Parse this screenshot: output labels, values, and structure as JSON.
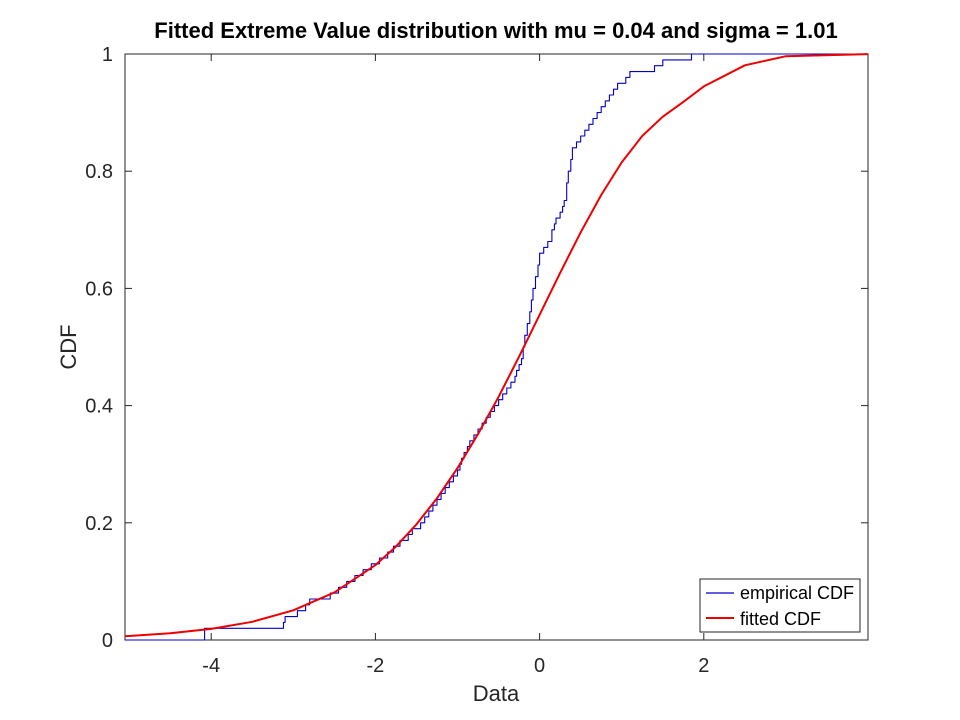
{
  "chart_data": {
    "type": "line",
    "title": "Fitted Extreme Value distribution with mu = 0.04 and sigma = 1.01",
    "xlabel": "Data",
    "ylabel": "CDF",
    "xlim": [
      -5.05,
      4.0
    ],
    "ylim": [
      0,
      1
    ],
    "x_ticks": [
      -4,
      -2,
      0,
      2
    ],
    "y_ticks": [
      0,
      0.2,
      0.4,
      0.6,
      0.8,
      1
    ],
    "x_tick_labels": [
      "-4",
      "-2",
      "0",
      "2"
    ],
    "y_tick_labels": [
      "0",
      "0.2",
      "0.4",
      "0.6",
      "0.8",
      "1"
    ],
    "grid": false,
    "legend_position": "bottom-right",
    "fit_params": {
      "mu": 0.04,
      "sigma": 1.01
    },
    "series": [
      {
        "name": "empirical CDF",
        "color": "#0000cc",
        "style": "stairs",
        "x": [
          -5.05,
          -4.08,
          -3.12,
          -3.1,
          -2.95,
          -2.85,
          -2.8,
          -2.55,
          -2.45,
          -2.35,
          -2.25,
          -2.15,
          -2.05,
          -1.95,
          -1.85,
          -1.78,
          -1.7,
          -1.6,
          -1.55,
          -1.45,
          -1.4,
          -1.35,
          -1.3,
          -1.25,
          -1.2,
          -1.15,
          -1.1,
          -1.05,
          -1.0,
          -0.97,
          -0.95,
          -0.92,
          -0.88,
          -0.85,
          -0.8,
          -0.75,
          -0.7,
          -0.65,
          -0.6,
          -0.55,
          -0.5,
          -0.45,
          -0.4,
          -0.35,
          -0.3,
          -0.28,
          -0.25,
          -0.22,
          -0.2,
          -0.18,
          -0.15,
          -0.12,
          -0.1,
          -0.08,
          -0.05,
          -0.02,
          0.0,
          0.05,
          0.1,
          0.15,
          0.18,
          0.2,
          0.25,
          0.28,
          0.3,
          0.33,
          0.35,
          0.38,
          0.4,
          0.45,
          0.5,
          0.55,
          0.6,
          0.65,
          0.7,
          0.75,
          0.8,
          0.85,
          0.9,
          0.95,
          1.05,
          1.1,
          1.2,
          1.4,
          1.5,
          1.6,
          1.85,
          2.2,
          4.0
        ],
        "y": [
          0.0,
          0.02,
          0.03,
          0.04,
          0.05,
          0.06,
          0.07,
          0.08,
          0.09,
          0.1,
          0.11,
          0.12,
          0.13,
          0.14,
          0.15,
          0.16,
          0.17,
          0.18,
          0.19,
          0.2,
          0.21,
          0.22,
          0.23,
          0.24,
          0.25,
          0.26,
          0.27,
          0.28,
          0.29,
          0.3,
          0.31,
          0.32,
          0.33,
          0.34,
          0.35,
          0.36,
          0.37,
          0.38,
          0.39,
          0.4,
          0.41,
          0.42,
          0.43,
          0.44,
          0.45,
          0.46,
          0.47,
          0.48,
          0.5,
          0.52,
          0.54,
          0.56,
          0.58,
          0.6,
          0.62,
          0.64,
          0.66,
          0.67,
          0.68,
          0.7,
          0.71,
          0.72,
          0.73,
          0.74,
          0.75,
          0.78,
          0.8,
          0.82,
          0.84,
          0.85,
          0.86,
          0.87,
          0.88,
          0.89,
          0.9,
          0.91,
          0.92,
          0.93,
          0.94,
          0.95,
          0.96,
          0.97,
          0.97,
          0.98,
          0.99,
          0.99,
          1.0,
          1.0,
          1.0
        ]
      },
      {
        "name": "fitted CDF",
        "color": "#ee0000",
        "style": "line",
        "x": [
          -5.05,
          -4.5,
          -4.0,
          -3.5,
          -3.0,
          -2.5,
          -2.0,
          -1.75,
          -1.5,
          -1.25,
          -1.0,
          -0.75,
          -0.5,
          -0.25,
          0.0,
          0.25,
          0.5,
          0.75,
          1.0,
          1.25,
          1.5,
          1.75,
          2.0,
          2.5,
          3.0,
          4.0
        ],
        "y": [
          0.0065,
          0.0114,
          0.0189,
          0.0311,
          0.0506,
          0.0812,
          0.1278,
          0.1594,
          0.1974,
          0.242,
          0.2934,
          0.3513,
          0.4151,
          0.4836,
          0.5549,
          0.6265,
          0.6957,
          0.7594,
          0.815,
          0.86,
          0.893,
          0.9183,
          0.9447,
          0.9807,
          0.9962,
          0.9999
        ]
      }
    ]
  }
}
